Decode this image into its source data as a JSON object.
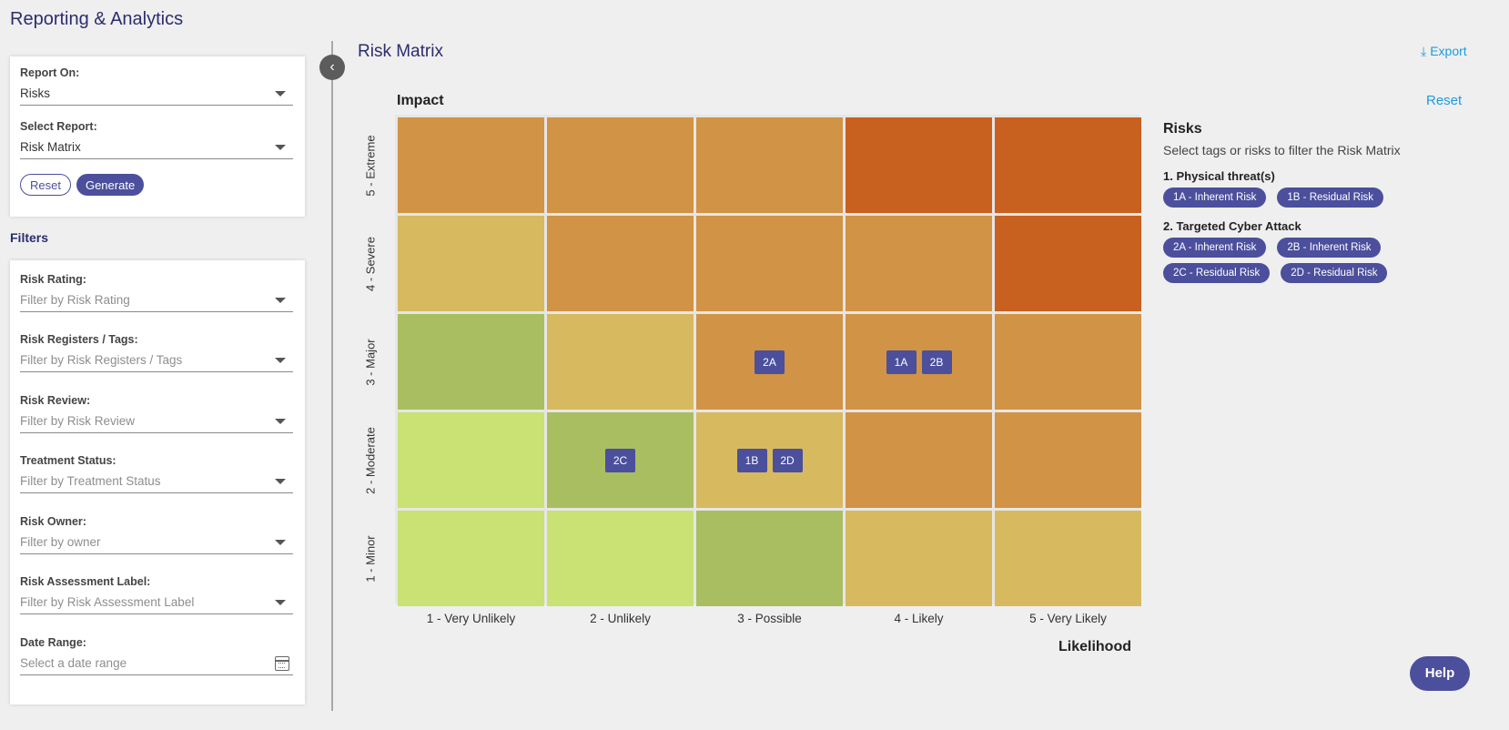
{
  "app": {
    "title": "Reporting & Analytics"
  },
  "report_form": {
    "report_on": {
      "label": "Report On:",
      "value": "Risks"
    },
    "select_report": {
      "label": "Select Report:",
      "value": "Risk Matrix"
    },
    "reset_label": "Reset",
    "generate_label": "Generate"
  },
  "filters": {
    "heading": "Filters",
    "risk_rating": {
      "label": "Risk Rating:",
      "placeholder": "Filter by Risk Rating"
    },
    "risk_registers": {
      "label": "Risk Registers / Tags:",
      "placeholder": "Filter by Risk Registers / Tags"
    },
    "risk_review": {
      "label": "Risk Review:",
      "placeholder": "Filter by Risk Review"
    },
    "treatment_status": {
      "label": "Treatment Status:",
      "placeholder": "Filter by Treatment Status"
    },
    "risk_owner": {
      "label": "Risk Owner:",
      "placeholder": "Filter by owner"
    },
    "assessment_label": {
      "label": "Risk Assessment Label:",
      "placeholder": "Filter by Risk Assessment Label"
    },
    "date_range": {
      "label": "Date Range:",
      "placeholder": "Select a date range"
    }
  },
  "matrix": {
    "title": "Risk Matrix",
    "export_label": "Export",
    "reset_label": "Reset",
    "y_axis_title": "Impact",
    "x_axis_title": "Likelihood",
    "impact_levels": [
      "5 - Extreme",
      "4 - Severe",
      "3 - Major",
      "2 - Moderate",
      "1 - Minor"
    ],
    "likelihood_levels": [
      "1 - Very Unlikely",
      "2 - Unlikely",
      "3 - Possible",
      "4 - Likely",
      "5 - Very Likely"
    ],
    "palette": {
      "light_green": "#c9e273",
      "green": "#a9be61",
      "yellow": "#d7ba60",
      "orange": "#d19345",
      "red": "#c8601f"
    },
    "cell_colors": [
      [
        "orange",
        "orange",
        "orange",
        "red",
        "red"
      ],
      [
        "yellow",
        "orange",
        "orange",
        "orange",
        "red"
      ],
      [
        "green",
        "yellow",
        "orange",
        "orange",
        "orange"
      ],
      [
        "light_green",
        "green",
        "yellow",
        "orange",
        "orange"
      ],
      [
        "light_green",
        "light_green",
        "green",
        "yellow",
        "yellow"
      ]
    ],
    "placements": [
      {
        "impact": 3,
        "likelihood": 3,
        "chips": [
          "2A"
        ]
      },
      {
        "impact": 3,
        "likelihood": 4,
        "chips": [
          "1A",
          "2B"
        ]
      },
      {
        "impact": 2,
        "likelihood": 2,
        "chips": [
          "2C"
        ]
      },
      {
        "impact": 2,
        "likelihood": 3,
        "chips": [
          "1B",
          "2D"
        ]
      }
    ]
  },
  "risks_panel": {
    "title": "Risks",
    "subtitle": "Select tags or risks to filter the Risk Matrix",
    "groups": [
      {
        "title": "1. Physical threat(s)",
        "rows": [
          [
            "1A - Inherent Risk",
            "1B - Residual Risk"
          ]
        ]
      },
      {
        "title": "2. Targeted Cyber Attack",
        "rows": [
          [
            "2A - Inherent Risk",
            "2B - Inherent Risk"
          ],
          [
            "2C - Residual Risk",
            "2D - Residual Risk"
          ]
        ]
      }
    ]
  },
  "help_label": "Help"
}
